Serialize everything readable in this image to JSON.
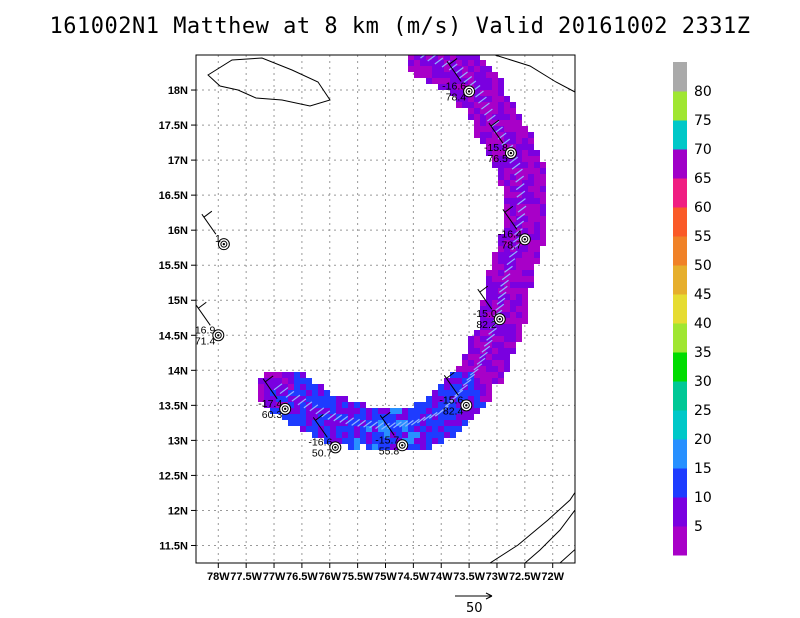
{
  "title": "161002N1 Matthew at 8 km (m/s) Valid 20161002 2331Z",
  "map": {
    "lon_range": [
      -78.4,
      -71.6
    ],
    "lat_range": [
      11.25,
      18.5
    ],
    "x_ticks": [
      "78W",
      "77.5W",
      "77W",
      "76.5W",
      "76W",
      "75.5W",
      "75W",
      "74.5W",
      "74W",
      "73.5W",
      "73W",
      "72.5W",
      "72W"
    ],
    "x_tick_values": [
      -78,
      -77.5,
      -77,
      -76.5,
      -76,
      -75.5,
      -75,
      -74.5,
      -74,
      -73.5,
      -73,
      -72.5,
      -72
    ],
    "y_ticks": [
      "11.5N",
      "12N",
      "12.5N",
      "13N",
      "13.5N",
      "14N",
      "14.5N",
      "15N",
      "15.5N",
      "16N",
      "16.5N",
      "17N",
      "17.5N",
      "18N"
    ],
    "y_tick_values": [
      11.5,
      12,
      12.5,
      13,
      13.5,
      14,
      14.5,
      15,
      15.5,
      16,
      16.5,
      17,
      17.5,
      18
    ],
    "grid": "dotted"
  },
  "colorbar": {
    "labels": [
      "5",
      "10",
      "15",
      "20",
      "25",
      "30",
      "35",
      "40",
      "45",
      "50",
      "55",
      "60",
      "65",
      "70",
      "75",
      "80"
    ],
    "colors": [
      "#a800c8",
      "#7a00e0",
      "#1e3cff",
      "#2890ff",
      "#00c8c8",
      "#00c896",
      "#00dc00",
      "#a0e632",
      "#e6dc32",
      "#e6af2d",
      "#f08228",
      "#fa5a28",
      "#f01e82",
      "#a000c8",
      "#00c8c8",
      "#a0e632",
      "#aaaaaa"
    ]
  },
  "stations": [
    {
      "line1": "-16.6",
      "line2": "78.4",
      "lon": -73.5,
      "lat": 17.98
    },
    {
      "line1": "-15.8",
      "line2": "76.5",
      "lon": -72.75,
      "lat": 17.1
    },
    {
      "line1": "-16.4",
      "line2": "78.7",
      "lon": -72.5,
      "lat": 15.87
    },
    {
      "line1": "1",
      "line2": "",
      "lon": -77.9,
      "lat": 15.8
    },
    {
      "line1": "-15.0",
      "line2": "82.2",
      "lon": -72.95,
      "lat": 14.73
    },
    {
      "line1": "16.9",
      "line2": "71.4",
      "lon": -78.0,
      "lat": 14.5
    },
    {
      "line1": "-17.4",
      "line2": "60.3",
      "lon": -76.8,
      "lat": 13.45
    },
    {
      "line1": "-15.6",
      "line2": "82.4",
      "lon": -73.55,
      "lat": 13.5
    },
    {
      "line1": "-16.6",
      "line2": "50.7",
      "lon": -75.9,
      "lat": 12.9
    },
    {
      "line1": "-15.7",
      "line2": "55.8",
      "lon": -74.7,
      "lat": 12.93
    }
  ],
  "reference_vector": {
    "label": "50"
  }
}
